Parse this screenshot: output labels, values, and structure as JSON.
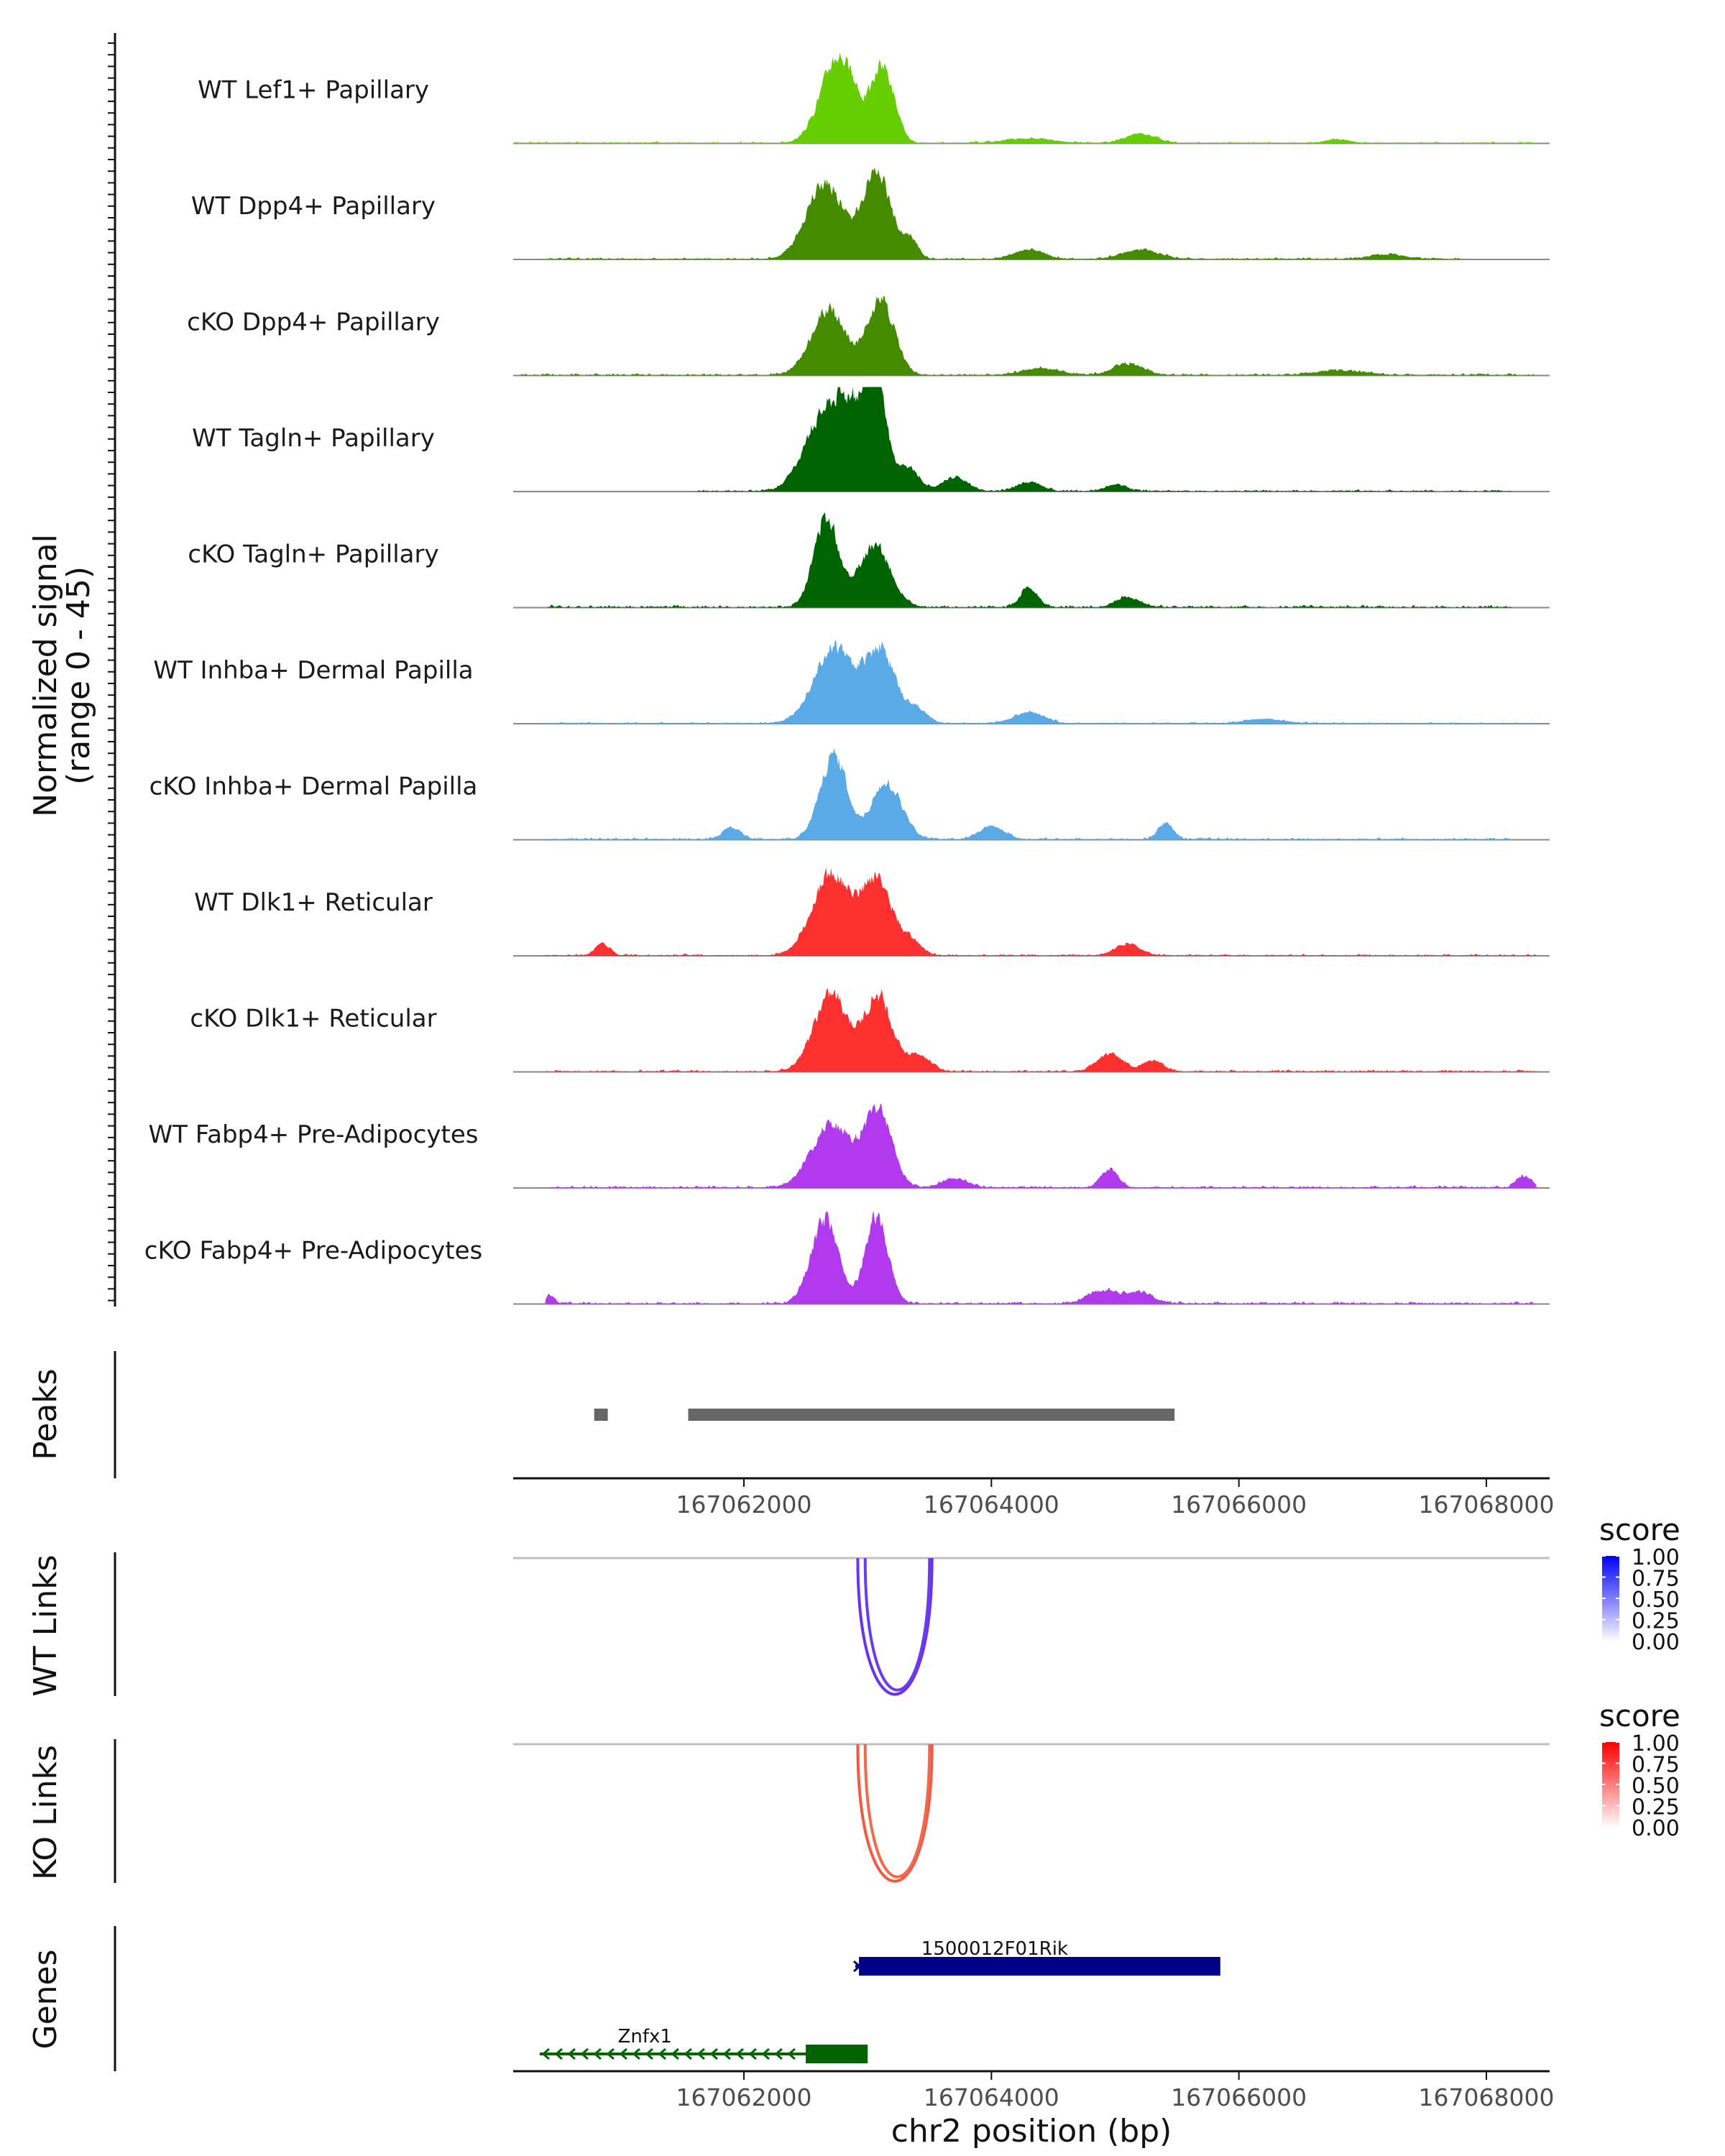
{
  "chart_data": {
    "type": "area",
    "region": {
      "chrom": "chr2",
      "start": 167060000,
      "end": 167068800
    },
    "xlabel": "chr2 position (bp)",
    "xticks": [
      167062000,
      167064000,
      167066000,
      167068000
    ],
    "xtick_labels": [
      "167062000",
      "167064000",
      "167066000",
      "167068000"
    ],
    "signal_axis": {
      "label_line1": "Normalized signal",
      "label_line2": "(range 0 - 45)",
      "ylim": [
        0,
        45
      ]
    },
    "coverage_tracks": [
      {
        "name": "WT Lef1+ Papillary",
        "color": "#66cd00",
        "peaks": [
          [
            167062760,
            38,
            140
          ],
          [
            167063120,
            32,
            90
          ],
          [
            167064300,
            2,
            200
          ],
          [
            167065200,
            4,
            120
          ],
          [
            167066800,
            1.5,
            100
          ]
        ],
        "noise": 1.2,
        "start": 167060100,
        "end": 167068400
      },
      {
        "name": "WT Dpp4+ Papillary",
        "color": "#458b00",
        "peaks": [
          [
            167062650,
            33,
            150
          ],
          [
            167063070,
            38,
            110
          ],
          [
            167063340,
            8,
            60
          ],
          [
            167064300,
            4,
            120
          ],
          [
            167065200,
            4,
            150
          ],
          [
            167067200,
            2,
            150
          ]
        ],
        "noise": 1.3,
        "start": 167060400,
        "end": 167067800
      },
      {
        "name": "cKO Dpp4+ Papillary",
        "color": "#458b00",
        "peaks": [
          [
            167062680,
            28,
            140
          ],
          [
            167063100,
            32,
            110
          ],
          [
            167064400,
            3,
            150
          ],
          [
            167065100,
            5,
            120
          ],
          [
            167066800,
            2,
            200
          ]
        ],
        "noise": 1.5,
        "start": 167060200,
        "end": 167068400
      },
      {
        "name": "WT Tagln+ Papillary",
        "color": "#006400",
        "peaks": [
          [
            167062620,
            30,
            150
          ],
          [
            167062850,
            30,
            120
          ],
          [
            167063060,
            45,
            90
          ],
          [
            167063330,
            10,
            80
          ],
          [
            167063700,
            6,
            100
          ],
          [
            167064300,
            4,
            100
          ],
          [
            167065000,
            3,
            80
          ]
        ],
        "noise": 1.4,
        "start": 167061600,
        "end": 167068200
      },
      {
        "name": "cKO Tagln+ Papillary",
        "color": "#006400",
        "peaks": [
          [
            167062660,
            38,
            100
          ],
          [
            167063050,
            26,
            130
          ],
          [
            167064300,
            8,
            70
          ],
          [
            167065100,
            4,
            100
          ]
        ],
        "noise": 1.8,
        "start": 167060400,
        "end": 167068200
      },
      {
        "name": "WT Inhba+ Dermal Papilla",
        "color": "#5aaae8",
        "peaks": [
          [
            167062720,
            33,
            160
          ],
          [
            167063100,
            31,
            120
          ],
          [
            167063400,
            6,
            80
          ],
          [
            167064300,
            5,
            120
          ],
          [
            167066200,
            2,
            150
          ]
        ],
        "noise": 1.1,
        "start": 167060400,
        "end": 167068400
      },
      {
        "name": "cKO Inhba+ Dermal Papilla",
        "color": "#5aaae8",
        "peaks": [
          [
            167062720,
            36,
            110
          ],
          [
            167063150,
            24,
            120
          ],
          [
            167064000,
            6,
            100
          ],
          [
            167065400,
            7,
            60
          ],
          [
            167061900,
            5,
            70
          ]
        ],
        "noise": 1.6,
        "start": 167060400,
        "end": 167068200
      },
      {
        "name": "WT Dlk1+ Reticular",
        "color": "#ff3030",
        "peaks": [
          [
            167062700,
            35,
            150
          ],
          [
            167063070,
            33,
            120
          ],
          [
            167063350,
            6,
            80
          ],
          [
            167065100,
            5,
            100
          ],
          [
            167060850,
            5,
            60
          ]
        ],
        "noise": 1.3,
        "start": 167060400,
        "end": 167068400
      },
      {
        "name": "cKO Dlk1+ Reticular",
        "color": "#ff3030",
        "peaks": [
          [
            167062700,
            33,
            140
          ],
          [
            167063080,
            32,
            110
          ],
          [
            167063400,
            7,
            100
          ],
          [
            167064950,
            8,
            100
          ],
          [
            167065300,
            5,
            80
          ]
        ],
        "noise": 1.5,
        "start": 167060400,
        "end": 167068400
      },
      {
        "name": "WT Fabp4+ Pre-Adipocytes",
        "color": "#b23aee",
        "peaks": [
          [
            167062700,
            27,
            160
          ],
          [
            167063080,
            33,
            110
          ],
          [
            167063700,
            4,
            100
          ],
          [
            167064950,
            8,
            70
          ],
          [
            167068300,
            5,
            60
          ]
        ],
        "noise": 1.6,
        "start": 167060400,
        "end": 167068400
      },
      {
        "name": "cKO Fabp4+ Pre-Adipocytes",
        "color": "#b23aee",
        "peaks": [
          [
            167062650,
            36,
            110
          ],
          [
            167063070,
            38,
            90
          ],
          [
            167064900,
            6,
            120
          ],
          [
            167065200,
            5,
            100
          ],
          [
            167060400,
            4,
            50
          ]
        ],
        "noise": 1.7,
        "start": 167060400,
        "end": 167068400
      }
    ],
    "peaks_track": {
      "label": "Peaks",
      "color": "#666666",
      "regions": [
        [
          167060790,
          167060900
        ],
        [
          167061550,
          167065480
        ]
      ]
    },
    "link_tracks": [
      {
        "label": "WT Links",
        "legend_title": "score",
        "legend_ticks": [
          "1.00",
          "0.75",
          "0.50",
          "0.25",
          "0.00"
        ],
        "gradient_low": "#ffffff",
        "gradient_high": "#0000ff",
        "links": [
          {
            "start": 167062920,
            "end": 167063520,
            "score": 0.72,
            "color": "#6a33ee"
          },
          {
            "start": 167062980,
            "end": 167063500,
            "score": 0.7,
            "color": "#6a3bf0"
          }
        ]
      },
      {
        "label": "KO Links",
        "legend_title": "score",
        "legend_ticks": [
          "1.00",
          "0.75",
          "0.50",
          "0.25",
          "0.00"
        ],
        "gradient_low": "#ffffff",
        "gradient_high": "#ff0000",
        "links": [
          {
            "start": 167062920,
            "end": 167063520,
            "score": 0.65,
            "color": "#f25a44"
          },
          {
            "start": 167062980,
            "end": 167063500,
            "score": 0.63,
            "color": "#f06a4e"
          }
        ]
      }
    ],
    "genes_track": {
      "label": "Genes",
      "genes": [
        {
          "name": "1500012F01Rik",
          "start": 167062900,
          "end": 167065850,
          "strand": "+",
          "color": "#000088",
          "exons": [
            [
              167062930,
              167065850
            ]
          ]
        },
        {
          "name": "Znfx1",
          "start": 167060350,
          "end": 167063000,
          "strand": "-",
          "color": "#006400",
          "exons": [
            [
              167062500,
              167063000
            ]
          ]
        }
      ]
    }
  }
}
